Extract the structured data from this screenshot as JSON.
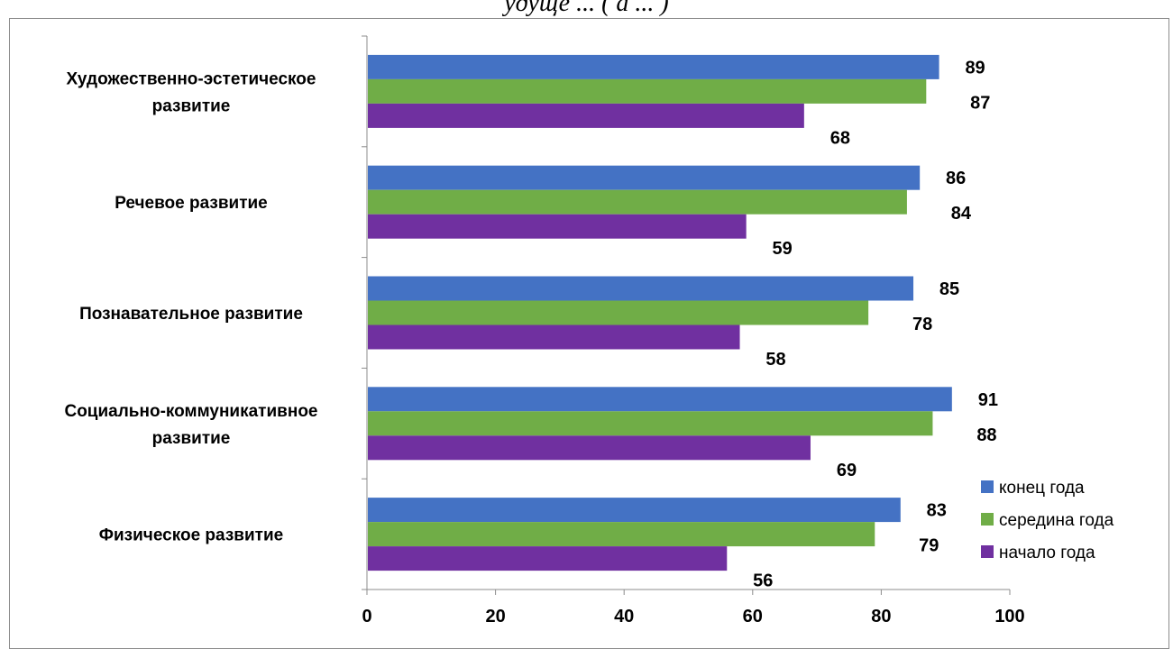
{
  "header": {
    "title_fragment": "удуще ... ( а ... )"
  },
  "chart_data": {
    "type": "bar",
    "orientation": "horizontal",
    "categories": [
      "Художественно-эстетическое развитие",
      "Речевое развитие",
      "Познавательное развитие",
      "Социально-коммуникативное развитие",
      "Физическое развитие"
    ],
    "category_lines": [
      [
        "Художественно-эстетическое",
        "развитие"
      ],
      [
        "Речевое развитие"
      ],
      [
        "Познавательное развитие"
      ],
      [
        "Социально-коммуникативное",
        "развитие"
      ],
      [
        "Физическое развитие"
      ]
    ],
    "series": [
      {
        "name": "конец года",
        "color": "#4472C4",
        "values": [
          89,
          86,
          85,
          91,
          83
        ]
      },
      {
        "name": "середина года",
        "color": "#70AD47",
        "values": [
          87,
          84,
          78,
          88,
          79
        ]
      },
      {
        "name": "начало года",
        "color": "#7030A0",
        "values": [
          68,
          59,
          58,
          69,
          56
        ]
      }
    ],
    "xlim": [
      0,
      100
    ],
    "xticks": [
      0,
      20,
      40,
      60,
      80,
      100
    ],
    "grid": false,
    "legend": "right"
  }
}
